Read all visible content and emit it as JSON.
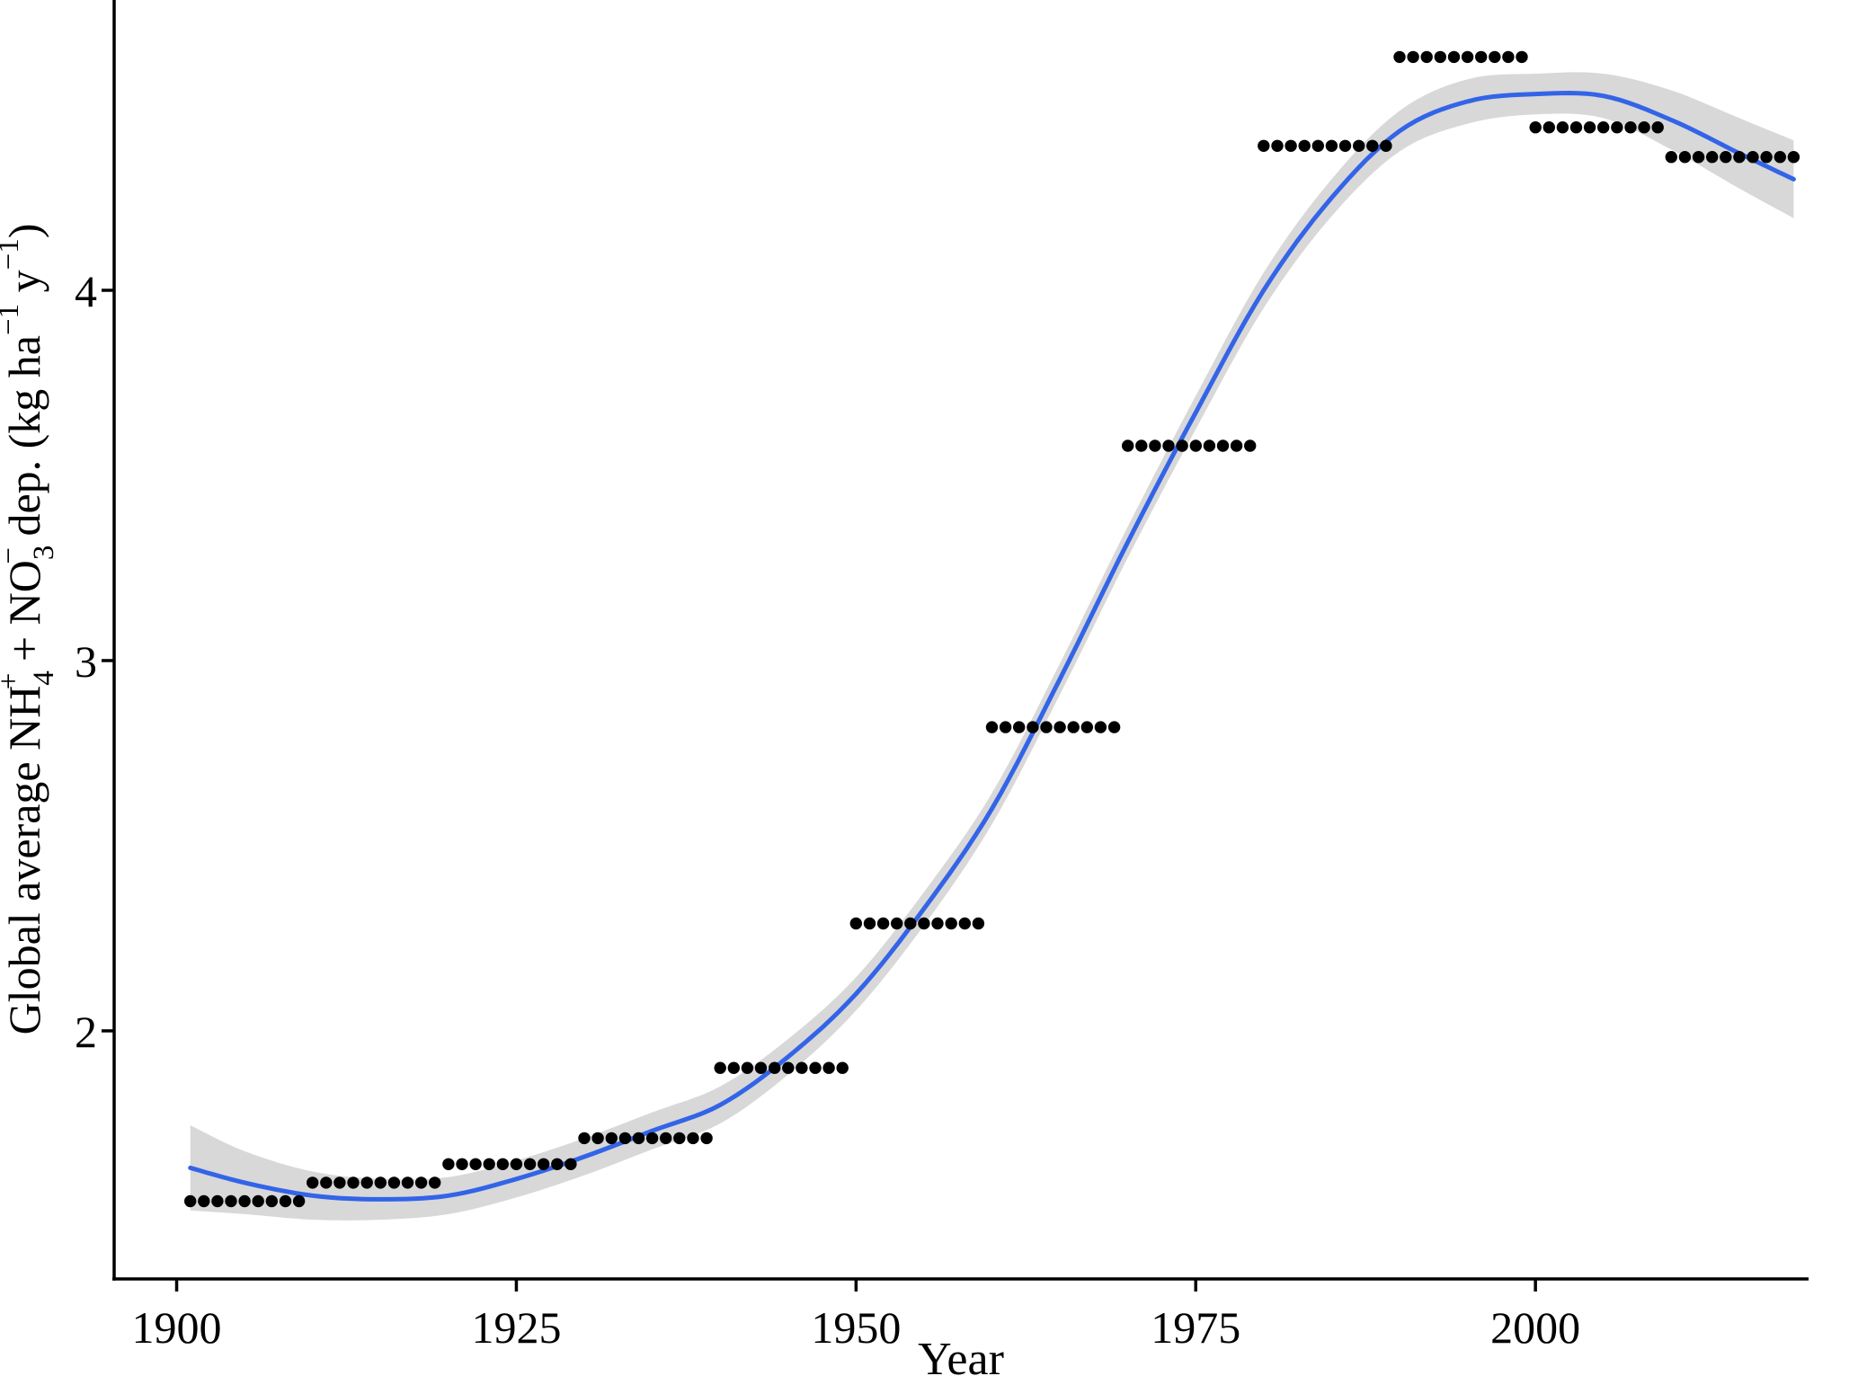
{
  "chart_data": {
    "type": "scatter",
    "title": "",
    "xlabel": "Year",
    "ylabel": "Global average NH4+ + NO3- dep. (kg ha-1 y-1)",
    "ylabel_rich": [
      {
        "text": "Global average NH",
        "style": "normal"
      },
      {
        "text": "4",
        "style": "sub"
      },
      {
        "text": "+",
        "style": "sup_stack"
      },
      {
        "text": " + NO",
        "style": "normal"
      },
      {
        "text": "3",
        "style": "sub"
      },
      {
        "text": "−",
        "style": "sup_stack"
      },
      {
        "text": " dep. (kg ha",
        "style": "normal"
      },
      {
        "text": "−1",
        "style": "sup"
      },
      {
        "text": " y",
        "style": "normal"
      },
      {
        "text": "−1",
        "style": "sup"
      },
      {
        "text": ")",
        "style": "normal"
      }
    ],
    "x_ticks": [
      1900,
      1925,
      1950,
      1975,
      2000
    ],
    "y_ticks": [
      2,
      3,
      4
    ],
    "xlim": [
      1895.4,
      2020.1
    ],
    "ylim": [
      1.33,
      4.784
    ],
    "grid": false,
    "legend": "none",
    "colors": {
      "points": "#000000",
      "fit_line": "#3364e8",
      "confidence_band": "#d8d8d8",
      "axis": "#000000"
    },
    "observations": [
      {
        "decade": "1900s",
        "start_year": 1901,
        "end_year": 1909,
        "value": 1.54
      },
      {
        "decade": "1910s",
        "start_year": 1910,
        "end_year": 1919,
        "value": 1.59
      },
      {
        "decade": "1920s",
        "start_year": 1920,
        "end_year": 1929,
        "value": 1.64
      },
      {
        "decade": "1930s",
        "start_year": 1930,
        "end_year": 1939,
        "value": 1.71
      },
      {
        "decade": "1940s",
        "start_year": 1940,
        "end_year": 1949,
        "value": 1.9
      },
      {
        "decade": "1950s",
        "start_year": 1950,
        "end_year": 1959,
        "value": 2.29
      },
      {
        "decade": "1960s",
        "start_year": 1960,
        "end_year": 1969,
        "value": 2.82
      },
      {
        "decade": "1970s",
        "start_year": 1970,
        "end_year": 1979,
        "value": 3.58
      },
      {
        "decade": "1980s",
        "start_year": 1980,
        "end_year": 1989,
        "value": 4.39
      },
      {
        "decade": "1990s",
        "start_year": 1990,
        "end_year": 1999,
        "value": 4.63
      },
      {
        "decade": "2000s",
        "start_year": 2000,
        "end_year": 2009,
        "value": 4.44
      },
      {
        "decade": "2010s",
        "start_year": 2010,
        "end_year": 2019,
        "value": 4.36
      }
    ],
    "fit_line": {
      "x": [
        1901,
        1905,
        1910,
        1915,
        1920,
        1925,
        1930,
        1935,
        1940,
        1945,
        1950,
        1955,
        1960,
        1965,
        1970,
        1975,
        1980,
        1985,
        1990,
        1995,
        2000,
        2005,
        2010,
        2015,
        2019
      ],
      "y": [
        1.63,
        1.59,
        1.555,
        1.545,
        1.555,
        1.6,
        1.66,
        1.73,
        1.8,
        1.93,
        2.1,
        2.33,
        2.6,
        2.95,
        3.32,
        3.67,
        4.0,
        4.25,
        4.43,
        4.51,
        4.53,
        4.525,
        4.46,
        4.37,
        4.3
      ]
    },
    "confidence_band": {
      "x": [
        1901,
        1905,
        1910,
        1915,
        1920,
        1925,
        1930,
        1935,
        1940,
        1945,
        1950,
        1955,
        1960,
        1965,
        1970,
        1975,
        1980,
        1985,
        1990,
        1995,
        2000,
        2005,
        2010,
        2015,
        2019
      ],
      "upper": [
        1.745,
        1.675,
        1.62,
        1.6,
        1.605,
        1.65,
        1.71,
        1.78,
        1.85,
        1.978,
        2.145,
        2.375,
        2.642,
        2.992,
        3.362,
        3.715,
        4.048,
        4.3,
        4.485,
        4.57,
        4.585,
        4.585,
        4.54,
        4.465,
        4.405
      ],
      "lower": [
        1.515,
        1.505,
        1.49,
        1.49,
        1.505,
        1.55,
        1.61,
        1.68,
        1.75,
        1.882,
        2.055,
        2.285,
        2.558,
        2.908,
        3.278,
        3.625,
        3.952,
        4.2,
        4.375,
        4.45,
        4.475,
        4.465,
        4.38,
        4.275,
        4.195
      ]
    }
  }
}
